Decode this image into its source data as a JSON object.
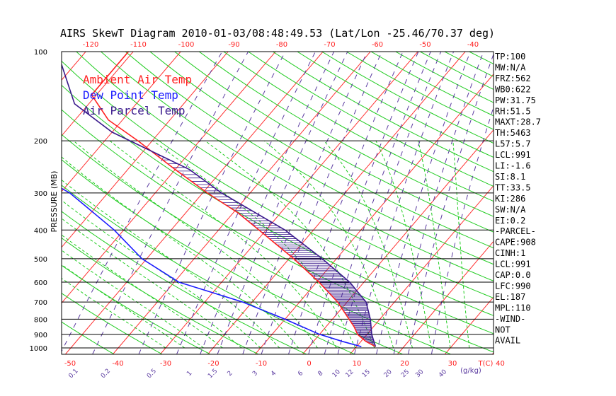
{
  "chart_data": {
    "type": "line",
    "title": "AIRS SkewT Diagram 2010-01-03/08:48:49.53 (Lat/Lon -25.46/70.37 deg)",
    "ylabel": "PRESSURE (MB)",
    "xlabel_bottom_unit": "T(C)",
    "mixing_ratio_unit": "(g/kg)",
    "pressure_ticks": [
      "100",
      "200",
      "300",
      "400",
      "500",
      "600",
      "700",
      "800",
      "900",
      "1000"
    ],
    "top_temp_ticks": [
      "-120",
      "-110",
      "-100",
      "-90",
      "-80",
      "-70",
      "-60",
      "-50",
      "-40"
    ],
    "bottom_temp_ticks": [
      "-50",
      "-40",
      "-30",
      "-20",
      "-10",
      "0",
      "10",
      "20",
      "30",
      "40"
    ],
    "mixing_ratio_labels": [
      "0.1",
      "0.2",
      "0.5",
      "1",
      "1.5",
      "2",
      "3",
      "4",
      "6",
      "8",
      "10",
      "12",
      "15",
      "20",
      "25",
      "30",
      "40"
    ],
    "legend": [
      {
        "name": "Ambient Air Temp",
        "color": "#ff2020"
      },
      {
        "name": "Dew Point Temp",
        "color": "#1a1aff"
      },
      {
        "name": "Air Parcel Temp",
        "color": "#3a1a8c"
      }
    ],
    "series": [
      {
        "name": "Ambient Air Temp",
        "color": "#ff2020",
        "points": [
          {
            "p": 100,
            "t": -81.0
          },
          {
            "p": 140,
            "t": -81.0
          },
          {
            "p": 170,
            "t": -73.0
          },
          {
            "p": 200,
            "t": -63.0
          },
          {
            "p": 250,
            "t": -50.0
          },
          {
            "p": 300,
            "t": -39.0
          },
          {
            "p": 350,
            "t": -29.0
          },
          {
            "p": 400,
            "t": -21.5
          },
          {
            "p": 500,
            "t": -9.0
          },
          {
            "p": 600,
            "t": 0.5
          },
          {
            "p": 700,
            "t": 8.0
          },
          {
            "p": 800,
            "t": 13.5
          },
          {
            "p": 850,
            "t": 16.0
          },
          {
            "p": 900,
            "t": 18.0
          },
          {
            "p": 950,
            "t": 21.0
          },
          {
            "p": 990,
            "t": 24.0
          }
        ]
      },
      {
        "name": "Dew Point Temp",
        "color": "#1a1aff",
        "points": [
          {
            "p": 100,
            "t": -106.0
          },
          {
            "p": 180,
            "t": -91.0
          },
          {
            "p": 250,
            "t": -81.0
          },
          {
            "p": 300,
            "t": -68.0
          },
          {
            "p": 400,
            "t": -52.0
          },
          {
            "p": 500,
            "t": -41.0
          },
          {
            "p": 600,
            "t": -29.0
          },
          {
            "p": 700,
            "t": -12.0
          },
          {
            "p": 800,
            "t": 0.0
          },
          {
            "p": 900,
            "t": 10.0
          },
          {
            "p": 950,
            "t": 16.0
          },
          {
            "p": 990,
            "t": 21.0
          }
        ]
      },
      {
        "name": "Air Parcel Temp",
        "color": "#3a1a8c",
        "points": [
          {
            "p": 100,
            "t": -96.0
          },
          {
            "p": 150,
            "t": -83.0
          },
          {
            "p": 187,
            "t": -70.0
          },
          {
            "p": 250,
            "t": -47.0
          },
          {
            "p": 300,
            "t": -36.0
          },
          {
            "p": 400,
            "t": -16.0
          },
          {
            "p": 500,
            "t": -3.0
          },
          {
            "p": 600,
            "t": 7.0
          },
          {
            "p": 700,
            "t": 14.0
          },
          {
            "p": 800,
            "t": 18.0
          },
          {
            "p": 900,
            "t": 21.0
          },
          {
            "p": 990,
            "t": 24.0
          }
        ]
      }
    ],
    "indices": [
      "TP:100",
      "MW:N/A",
      "FRZ:562",
      "WB0:622",
      "PW:31.75",
      "RH:51.5",
      "MAXT:28.7",
      "TH:5463",
      "L57:5.7",
      "LCL:991",
      "LI:-1.6",
      "SI:8.1",
      "TT:33.5",
      "KI:286",
      "SW:N/A",
      "EI:0.2",
      "-PARCEL-",
      "CAPE:908",
      "CINH:1",
      "LCL:991",
      "CAP:0.0",
      "LFC:990",
      "EL:187",
      "MPL:110",
      "-WIND-",
      "NOT",
      "AVAIL"
    ],
    "grid": true,
    "legend_position": "top-left"
  }
}
